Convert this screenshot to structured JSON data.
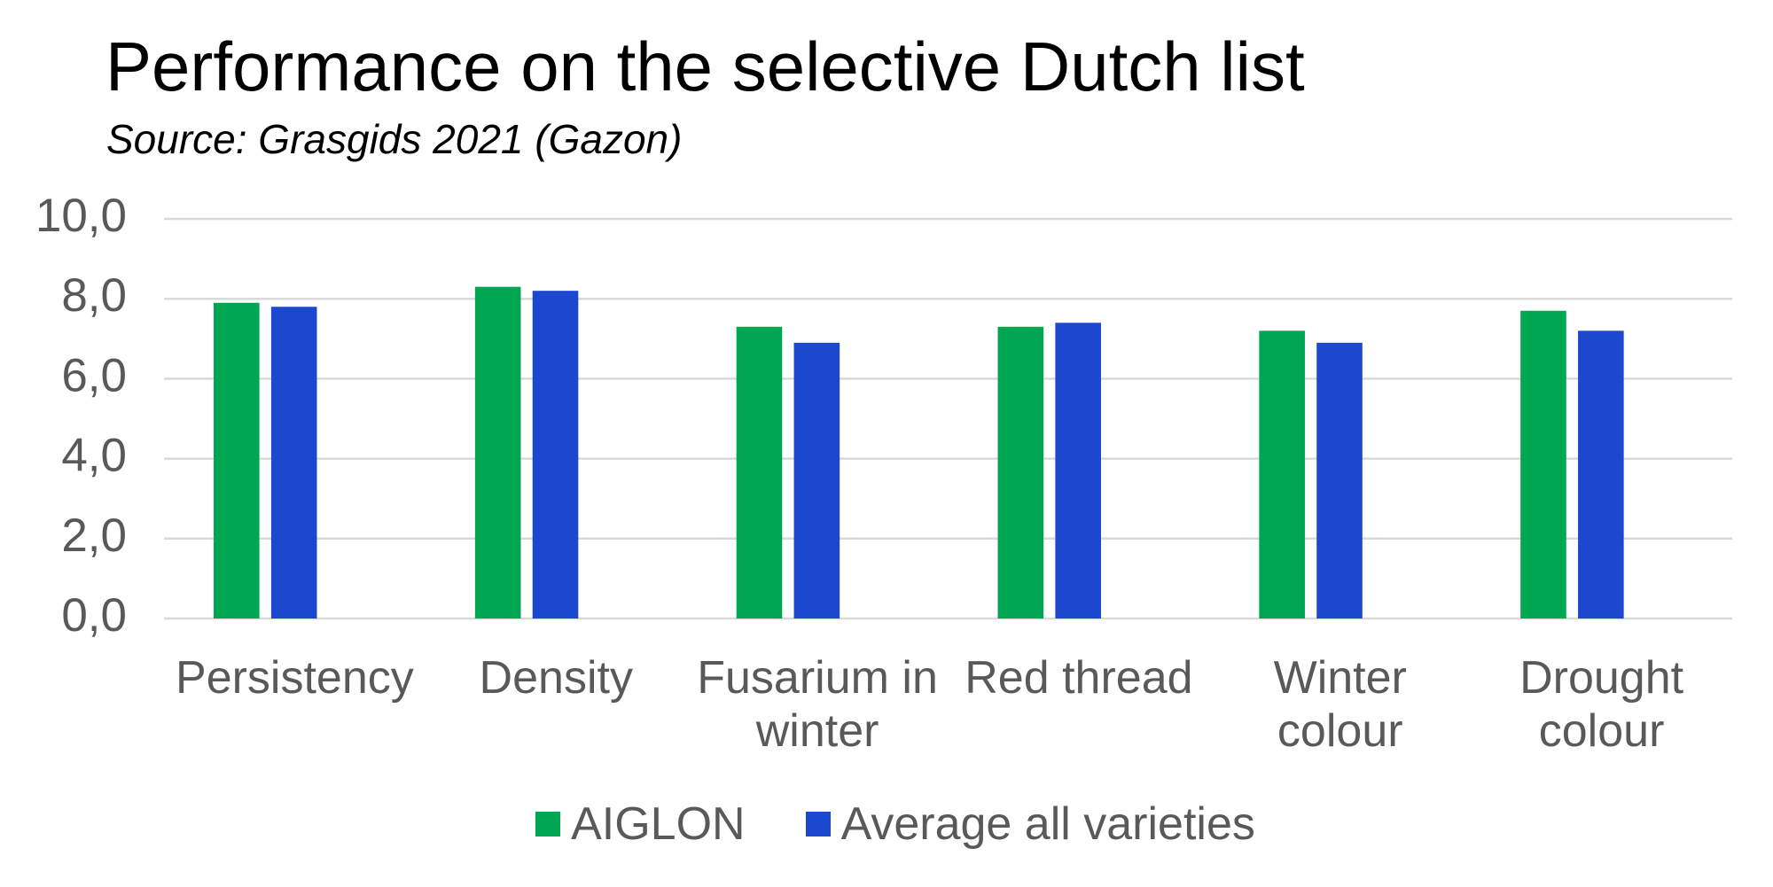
{
  "chart_data": {
    "type": "bar",
    "title": "Performance on the selective Dutch list",
    "subtitle": "Source: Grasgids 2021 (Gazon)",
    "categories": [
      "Persistency",
      "Density",
      "Fusarium in winter",
      "Red thread",
      "Winter colour",
      "Drought colour"
    ],
    "series": [
      {
        "name": "AIGLON",
        "color": "#00a651",
        "values": [
          7.9,
          8.3,
          7.3,
          7.3,
          7.2,
          7.7
        ]
      },
      {
        "name": "Average all varieties",
        "color": "#1c48d0",
        "values": [
          7.8,
          8.2,
          6.9,
          7.4,
          6.9,
          7.2
        ]
      }
    ],
    "ylim": [
      0,
      10
    ],
    "yticks": [
      {
        "value": 0,
        "label": "0,0"
      },
      {
        "value": 2,
        "label": "2,0"
      },
      {
        "value": 4,
        "label": "4,0"
      },
      {
        "value": 6,
        "label": "6,0"
      },
      {
        "value": 8,
        "label": "8,0"
      },
      {
        "value": 10,
        "label": "10,0"
      }
    ],
    "grid": true,
    "legend": "bottom"
  }
}
